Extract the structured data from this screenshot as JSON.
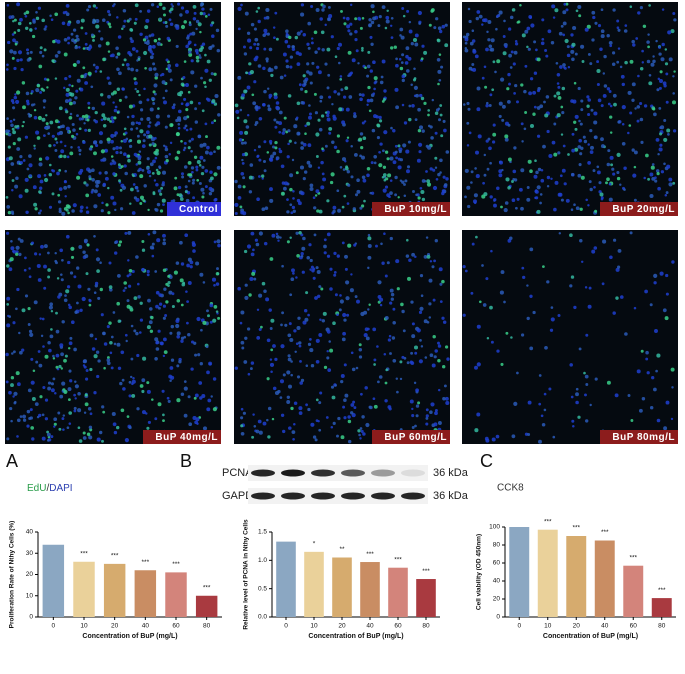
{
  "images": [
    {
      "label": "Control"
    },
    {
      "label": "BuP 10mg/L"
    },
    {
      "label": "BuP 20mg/L"
    },
    {
      "label": "BuP 40mg/L"
    },
    {
      "label": "BuP 60mg/L"
    },
    {
      "label": "BuP 80mg/L"
    }
  ],
  "blot": {
    "rows": [
      {
        "protein": "PCNA",
        "size": "36 kDa"
      },
      {
        "protein": "GAPDH",
        "size": "36 kDa"
      }
    ]
  },
  "chart_data": [
    {
      "type": "bar",
      "panel_label": "A",
      "stains": [
        {
          "name": "EdU",
          "color": "#2a9d4a"
        },
        {
          "name": "DAPI",
          "color": "#2b3fb0"
        }
      ],
      "separator": "/",
      "y_label": "Proliferation Rate of Nthy Cells (%)",
      "x_label": "Concentration of BuP (mg/L)",
      "categories": [
        "0",
        "10",
        "20",
        "40",
        "60",
        "80"
      ],
      "values": [
        34,
        26,
        25,
        22,
        21,
        10
      ],
      "significance": [
        null,
        "***",
        "***",
        "***",
        "***",
        "***"
      ],
      "colors": [
        "#8ba7c2",
        "#ead19a",
        "#d6ab6e",
        "#c98d63",
        "#d3847b",
        "#a93a40"
      ],
      "ylim": [
        0,
        40
      ],
      "yticks": [
        0,
        10,
        20,
        30,
        40
      ]
    },
    {
      "type": "bar",
      "panel_label": "B",
      "y_label": "Relative level of PCNA in Nthy Cells",
      "x_label": "Concentration of BuP (mg/L)",
      "categories": [
        "0",
        "10",
        "20",
        "40",
        "60",
        "80"
      ],
      "values": [
        1.33,
        1.15,
        1.05,
        0.97,
        0.87,
        0.67
      ],
      "significance": [
        null,
        "*",
        "**",
        "***",
        "***",
        "***"
      ],
      "colors": [
        "#8ba7c2",
        "#ead19a",
        "#d6ab6e",
        "#c98d63",
        "#d3847b",
        "#a93a40"
      ],
      "ylim": [
        0,
        1.5
      ],
      "yticks": [
        {
          "value": 0,
          "label": "0.0"
        },
        {
          "value": 0.5,
          "label": "0.5"
        },
        {
          "value": 1,
          "label": "1.0"
        },
        {
          "value": 1.5,
          "label": "1.5"
        }
      ]
    },
    {
      "type": "bar",
      "panel_label": "C",
      "title": "CCK8",
      "y_label": "Cell viability (OD 450nm)",
      "x_label": "Concentration of BuP (mg/L)",
      "categories": [
        "0",
        "10",
        "20",
        "40",
        "60",
        "80"
      ],
      "values": [
        100,
        97,
        90,
        85,
        57,
        21
      ],
      "significance": [
        null,
        "***",
        "***",
        "***",
        "***",
        "***"
      ],
      "colors": [
        "#8ba7c2",
        "#ead19a",
        "#d6ab6e",
        "#c98d63",
        "#d3847b",
        "#a93a40"
      ],
      "ylim": [
        0,
        100
      ],
      "yticks": [
        0,
        20,
        40,
        60,
        80,
        100
      ]
    }
  ]
}
